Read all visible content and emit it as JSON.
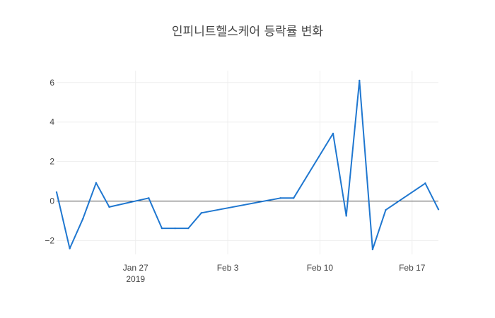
{
  "chart_data": {
    "type": "line",
    "title": "인피니트헬스케어 등락률 변화",
    "xlabel": "",
    "ylabel": "",
    "x_range": [
      "2019-01-21",
      "2019-02-19"
    ],
    "ylim": [
      -2.7,
      6.6
    ],
    "y_ticks": [
      6,
      4,
      2,
      0,
      -2
    ],
    "y_tick_labels": [
      "6",
      "4",
      "2",
      "0",
      "−2"
    ],
    "x_ticks": [
      {
        "date": "2019-01-27",
        "label": "Jan 27",
        "sublabel": "2019"
      },
      {
        "date": "2019-02-03",
        "label": "Feb 3",
        "sublabel": ""
      },
      {
        "date": "2019-02-10",
        "label": "Feb 10",
        "sublabel": ""
      },
      {
        "date": "2019-02-17",
        "label": "Feb 17",
        "sublabel": ""
      }
    ],
    "grid": true,
    "line_color": "#1f77d0",
    "series": [
      {
        "x": [
          "2019-01-21",
          "2019-01-22",
          "2019-01-23",
          "2019-01-24",
          "2019-01-25",
          "2019-01-28",
          "2019-01-29",
          "2019-01-30",
          "2019-01-31",
          "2019-02-01",
          "2019-02-07",
          "2019-02-08",
          "2019-02-11",
          "2019-02-12",
          "2019-02-13",
          "2019-02-14",
          "2019-02-15",
          "2019-02-18",
          "2019-02-19"
        ],
        "y": [
          0.45,
          -2.4,
          -0.9,
          0.92,
          -0.3,
          0.15,
          -1.38,
          -1.38,
          -1.38,
          -0.6,
          0.15,
          0.15,
          3.42,
          -0.75,
          6.1,
          -2.45,
          -0.45,
          0.9,
          -0.42
        ]
      }
    ]
  }
}
